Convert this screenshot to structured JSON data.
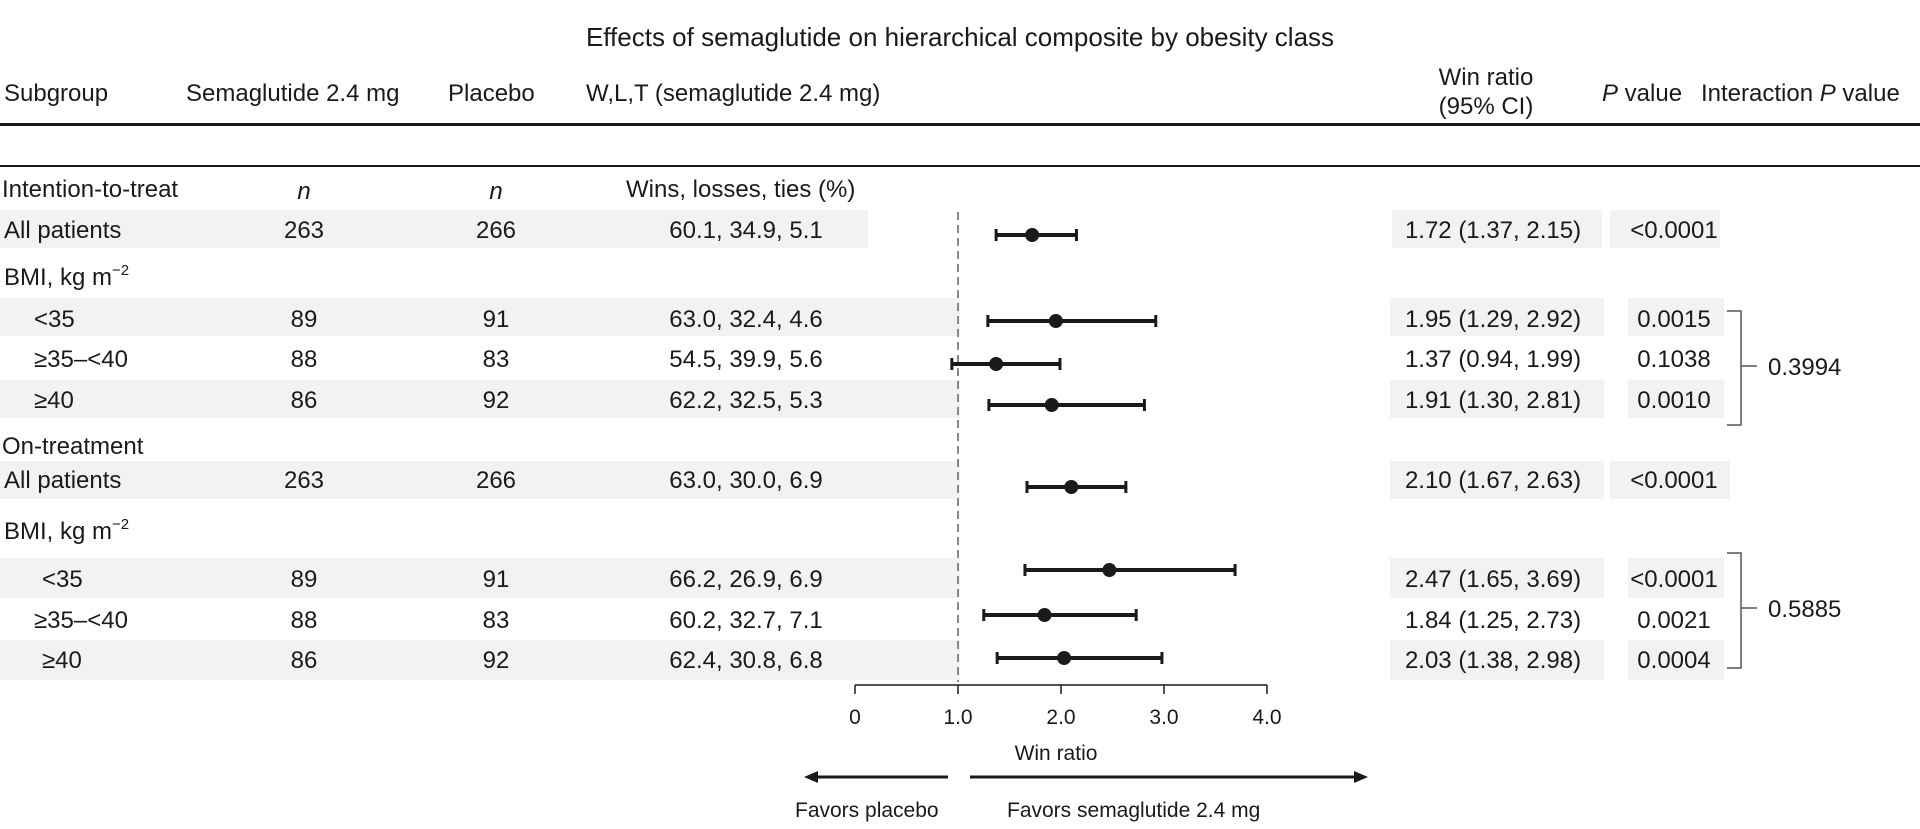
{
  "title": "Effects of semaglutide on hierarchical composite by obesity class",
  "headers": {
    "subgroup": "Subgroup",
    "semaglutide": "Semaglutide 2.4 mg",
    "placebo": "Placebo",
    "wlt": "W,L,T (semaglutide 2.4 mg)",
    "win_ratio_line1": "Win ratio",
    "win_ratio_line2": "(95% CI)",
    "p_italic": "P",
    "p_rest": " value",
    "interaction_prefix": "Interaction ",
    "interaction_italic": "P",
    "interaction_rest": " value"
  },
  "subheader": {
    "label": "Intention-to-treat",
    "n_sema": "n",
    "n_placebo": "n",
    "wlt": "Wins, losses, ties (%)"
  },
  "sections": {
    "bmi_label": "BMI, kg m",
    "bmi_sup": "−2",
    "on_treatment": "On-treatment"
  },
  "rows": [
    {
      "label": "All patients",
      "sema": "263",
      "placebo": "266",
      "wlt": "60.1, 34.9, 5.1",
      "wr": "1.72 (1.37, 2.15)",
      "p": "<0.0001"
    },
    {
      "label": "<35",
      "sema": "89",
      "placebo": "91",
      "wlt": "63.0, 32.4, 4.6",
      "wr": "1.95 (1.29, 2.92)",
      "p": "0.0015"
    },
    {
      "label": "≥35–<40",
      "sema": "88",
      "placebo": "83",
      "wlt": "54.5, 39.9, 5.6",
      "wr": "1.37 (0.94, 1.99)",
      "p": "0.1038"
    },
    {
      "label": "≥40",
      "sema": "86",
      "placebo": "92",
      "wlt": "62.2, 32.5, 5.3",
      "wr": "1.91 (1.30, 2.81)",
      "p": "0.0010"
    },
    {
      "label": "All patients",
      "sema": "263",
      "placebo": "266",
      "wlt": "63.0, 30.0, 6.9",
      "wr": "2.10 (1.67, 2.63)",
      "p": "<0.0001"
    },
    {
      "label": "<35",
      "sema": "89",
      "placebo": "91",
      "wlt": "66.2, 26.9, 6.9",
      "wr": "2.47 (1.65, 3.69)",
      "p": "<0.0001"
    },
    {
      "label": "≥35–<40",
      "sema": "88",
      "placebo": "83",
      "wlt": "60.2, 32.7, 7.1",
      "wr": "1.84 (1.25, 2.73)",
      "p": "0.0021"
    },
    {
      "label": "≥40",
      "sema": "86",
      "placebo": "92",
      "wlt": "62.4, 30.8, 6.8",
      "wr": "2.03 (1.38, 2.98)",
      "p": "0.0004"
    }
  ],
  "interaction": [
    "0.3994",
    "0.5885"
  ],
  "chart_data": {
    "type": "forest",
    "title": "Effects of semaglutide on hierarchical composite by obesity class",
    "xlabel": "Win ratio",
    "xlim": [
      0,
      4.0
    ],
    "xticks": [
      "0",
      "1.0",
      "2.0",
      "3.0",
      "4.0"
    ],
    "reference_line": 1.0,
    "left_arrow_label": "Favors placebo",
    "right_arrow_label": "Favors semaglutide 2.4 mg",
    "series": [
      {
        "name": "ITT All patients",
        "estimate": 1.72,
        "lower": 1.37,
        "upper": 2.15
      },
      {
        "name": "ITT BMI <35",
        "estimate": 1.95,
        "lower": 1.29,
        "upper": 2.92
      },
      {
        "name": "ITT BMI ≥35–<40",
        "estimate": 1.37,
        "lower": 0.94,
        "upper": 1.99
      },
      {
        "name": "ITT BMI ≥40",
        "estimate": 1.91,
        "lower": 1.3,
        "upper": 2.81
      },
      {
        "name": "On-treatment All patients",
        "estimate": 2.1,
        "lower": 1.67,
        "upper": 2.63
      },
      {
        "name": "On-treatment BMI <35",
        "estimate": 2.47,
        "lower": 1.65,
        "upper": 3.69
      },
      {
        "name": "On-treatment BMI ≥35–<40",
        "estimate": 1.84,
        "lower": 1.25,
        "upper": 2.73
      },
      {
        "name": "On-treatment BMI ≥40",
        "estimate": 2.03,
        "lower": 1.38,
        "upper": 2.98
      }
    ]
  }
}
